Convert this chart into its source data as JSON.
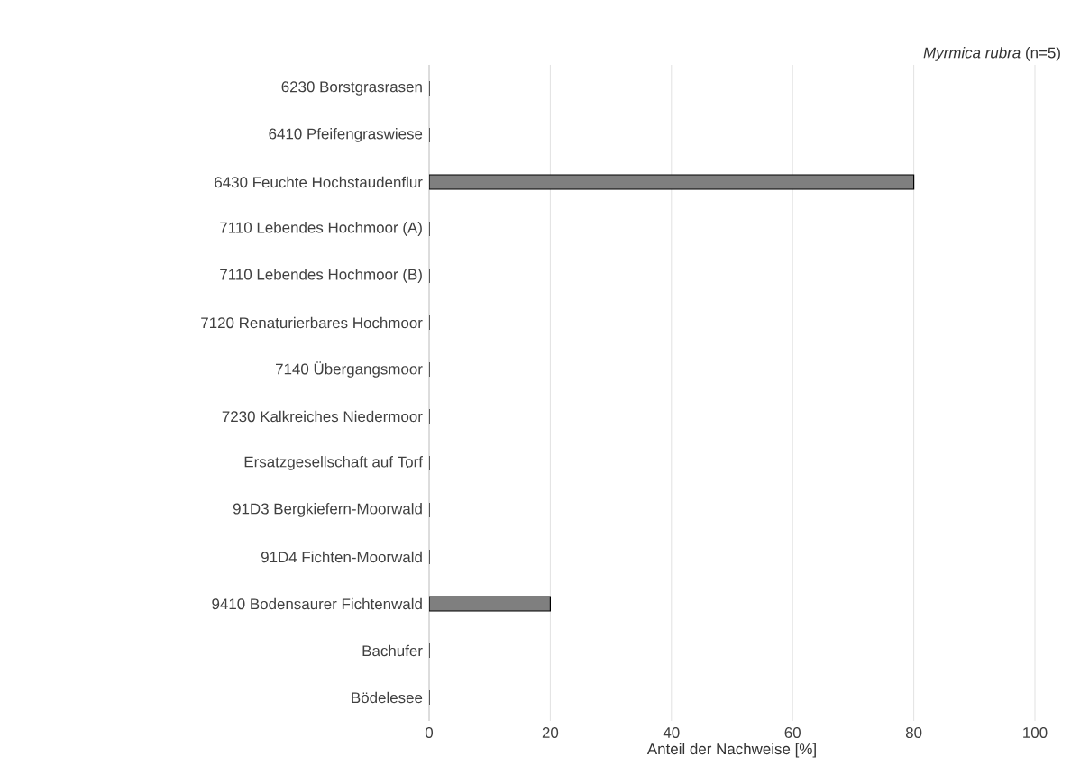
{
  "chart_data": {
    "type": "bar",
    "orientation": "horizontal",
    "title": "*Myrmica rubra* (n=5)",
    "xlabel": "Anteil der Nachweise [%]",
    "categories": [
      "6230 Borstgrasrasen",
      "6410 Pfeifengraswiese",
      "6430 Feuchte Hochstaudenflur",
      "7110 Lebendes Hochmoor (A)",
      "7110 Lebendes Hochmoor (B)",
      "7120 Renaturierbares Hochmoor",
      "7140 Übergangsmoor",
      "7230 Kalkreiches Niedermoor",
      "Ersatzgesellschaft auf Torf",
      "91D3 Bergkiefern-Moorwald",
      "91D4 Fichten-Moorwald",
      "9410 Bodensaurer Fichtenwald",
      "Bachufer",
      "Bödelesee"
    ],
    "values": [
      0,
      0,
      80,
      0,
      0,
      0,
      0,
      0,
      0,
      0,
      0,
      20,
      0,
      0
    ],
    "color": "#7f7f7f",
    "xlim": [
      0,
      100
    ],
    "xticks": [
      0,
      20,
      40,
      60,
      80,
      100
    ],
    "grid": "x"
  }
}
